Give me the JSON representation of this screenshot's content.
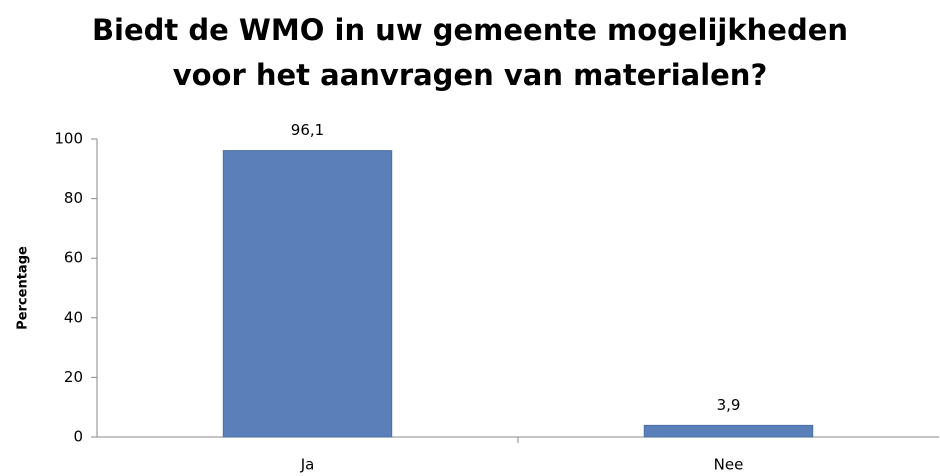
{
  "chart_data": {
    "type": "bar",
    "title": [
      "Biedt de WMO in uw gemeente mogelijkheden",
      "voor het aanvragen van materialen?"
    ],
    "y_label": "Percentage",
    "categories": [
      "Ja",
      "Nee"
    ],
    "values": [
      96.1,
      3.9
    ],
    "value_labels": [
      "96,1",
      "3,9"
    ],
    "color": "#5a7fb9",
    "ylim": [
      0,
      100
    ],
    "yticks": [
      0,
      20,
      40,
      60,
      80,
      100
    ],
    "grid": false
  }
}
